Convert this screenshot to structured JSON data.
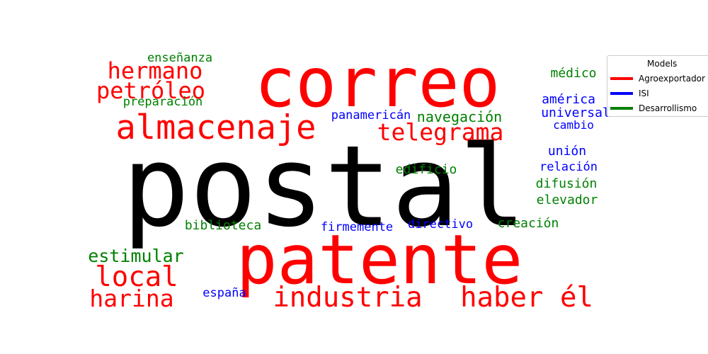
{
  "legend": {
    "title": "Models",
    "entries": [
      {
        "label": "Agroexportador",
        "color": "#ff0000"
      },
      {
        "label": "ISI",
        "color": "#0000ff"
      },
      {
        "label": "Desarrollismo",
        "color": "#008000"
      }
    ]
  },
  "words": [
    {
      "text": "postal",
      "color": "#000000"
    },
    {
      "text": "correo",
      "color": "#ff0000"
    },
    {
      "text": "patente",
      "color": "#ff0000"
    },
    {
      "text": "almacenaje",
      "color": "#ff0000"
    },
    {
      "text": "hermano",
      "color": "#ff0000"
    },
    {
      "text": "petróleo",
      "color": "#ff0000"
    },
    {
      "text": "telegrama",
      "color": "#ff0000"
    },
    {
      "text": "local",
      "color": "#ff0000"
    },
    {
      "text": "harina",
      "color": "#ff0000"
    },
    {
      "text": "industria",
      "color": "#ff0000"
    },
    {
      "text": "haber él",
      "color": "#ff0000"
    },
    {
      "text": "enseñanza",
      "color": "#008000"
    },
    {
      "text": "preparación",
      "color": "#008000"
    },
    {
      "text": "navegación",
      "color": "#008000"
    },
    {
      "text": "médico",
      "color": "#008000"
    },
    {
      "text": "edificio",
      "color": "#008000"
    },
    {
      "text": "difusión",
      "color": "#008000"
    },
    {
      "text": "elevador",
      "color": "#008000"
    },
    {
      "text": "biblioteca",
      "color": "#008000"
    },
    {
      "text": "creación",
      "color": "#008000"
    },
    {
      "text": "estimular",
      "color": "#008000"
    },
    {
      "text": "panamericán",
      "color": "#0000ff"
    },
    {
      "text": "américa",
      "color": "#0000ff"
    },
    {
      "text": "universal",
      "color": "#0000ff"
    },
    {
      "text": "cambio",
      "color": "#0000ff"
    },
    {
      "text": "unión",
      "color": "#0000ff"
    },
    {
      "text": "relación",
      "color": "#0000ff"
    },
    {
      "text": "firmemente",
      "color": "#0000ff"
    },
    {
      "text": "directivo",
      "color": "#0000ff"
    },
    {
      "text": "españa",
      "color": "#0000ff"
    }
  ]
}
